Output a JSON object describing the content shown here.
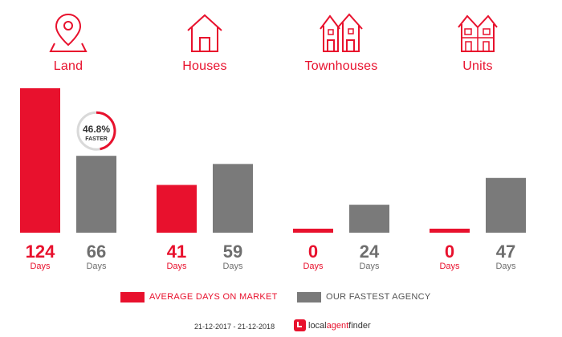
{
  "colors": {
    "accent": "#e8112d",
    "secondary": "#7a7a7a",
    "value_grey": "#6e6e6e"
  },
  "categories": [
    {
      "label": "Land",
      "icon": "location-pin-icon"
    },
    {
      "label": "Houses",
      "icon": "house-icon"
    },
    {
      "label": "Townhouses",
      "icon": "townhouses-icon"
    },
    {
      "label": "Units",
      "icon": "units-icon"
    }
  ],
  "chart_data": {
    "type": "bar",
    "categories": [
      "Land",
      "Houses",
      "Townhouses",
      "Units"
    ],
    "series": [
      {
        "name": "AVERAGE DAYS ON MARKET",
        "values": [
          124,
          41,
          0,
          0
        ]
      },
      {
        "name": "OUR FASTEST AGENCY",
        "values": [
          66,
          59,
          24,
          47
        ]
      }
    ],
    "value_unit": "Days",
    "ylim": [
      0,
      124
    ],
    "badge": {
      "value": "46.8%",
      "text": "FASTER",
      "category": "Land",
      "fraction": 0.468
    }
  },
  "legend": {
    "avg_label": "AVERAGE DAYS ON MARKET",
    "fast_label": "OUR FASTEST AGENCY"
  },
  "footer": {
    "date_range": "21-12-2017 - 21-12-2018",
    "logo_local": "local",
    "logo_agent": "agent",
    "logo_finder": "finder"
  }
}
